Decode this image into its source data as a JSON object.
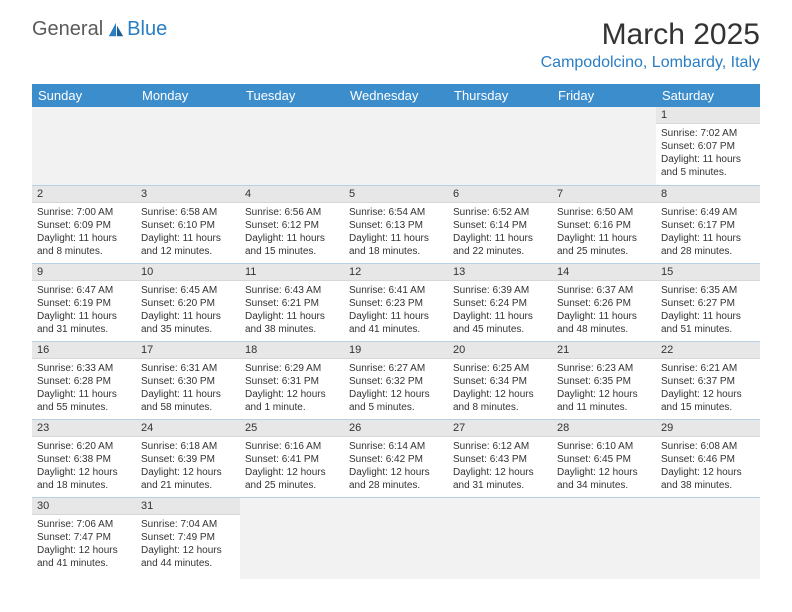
{
  "logo": {
    "text1": "General",
    "text2": "Blue"
  },
  "title": "March 2025",
  "location": "Campodolcino, Lombardy, Italy",
  "columns": [
    "Sunday",
    "Monday",
    "Tuesday",
    "Wednesday",
    "Thursday",
    "Friday",
    "Saturday"
  ],
  "colors": {
    "header_bg": "#3c8dcc",
    "link_blue": "#2a7ec4",
    "daynum_bg": "#e7e7e7",
    "empty_bg": "#f2f2f2",
    "border": "#b8cfe4"
  },
  "weeks": [
    [
      null,
      null,
      null,
      null,
      null,
      null,
      {
        "n": "1",
        "sr": "Sunrise: 7:02 AM",
        "ss": "Sunset: 6:07 PM",
        "dl": "Daylight: 11 hours and 5 minutes."
      }
    ],
    [
      {
        "n": "2",
        "sr": "Sunrise: 7:00 AM",
        "ss": "Sunset: 6:09 PM",
        "dl": "Daylight: 11 hours and 8 minutes."
      },
      {
        "n": "3",
        "sr": "Sunrise: 6:58 AM",
        "ss": "Sunset: 6:10 PM",
        "dl": "Daylight: 11 hours and 12 minutes."
      },
      {
        "n": "4",
        "sr": "Sunrise: 6:56 AM",
        "ss": "Sunset: 6:12 PM",
        "dl": "Daylight: 11 hours and 15 minutes."
      },
      {
        "n": "5",
        "sr": "Sunrise: 6:54 AM",
        "ss": "Sunset: 6:13 PM",
        "dl": "Daylight: 11 hours and 18 minutes."
      },
      {
        "n": "6",
        "sr": "Sunrise: 6:52 AM",
        "ss": "Sunset: 6:14 PM",
        "dl": "Daylight: 11 hours and 22 minutes."
      },
      {
        "n": "7",
        "sr": "Sunrise: 6:50 AM",
        "ss": "Sunset: 6:16 PM",
        "dl": "Daylight: 11 hours and 25 minutes."
      },
      {
        "n": "8",
        "sr": "Sunrise: 6:49 AM",
        "ss": "Sunset: 6:17 PM",
        "dl": "Daylight: 11 hours and 28 minutes."
      }
    ],
    [
      {
        "n": "9",
        "sr": "Sunrise: 6:47 AM",
        "ss": "Sunset: 6:19 PM",
        "dl": "Daylight: 11 hours and 31 minutes."
      },
      {
        "n": "10",
        "sr": "Sunrise: 6:45 AM",
        "ss": "Sunset: 6:20 PM",
        "dl": "Daylight: 11 hours and 35 minutes."
      },
      {
        "n": "11",
        "sr": "Sunrise: 6:43 AM",
        "ss": "Sunset: 6:21 PM",
        "dl": "Daylight: 11 hours and 38 minutes."
      },
      {
        "n": "12",
        "sr": "Sunrise: 6:41 AM",
        "ss": "Sunset: 6:23 PM",
        "dl": "Daylight: 11 hours and 41 minutes."
      },
      {
        "n": "13",
        "sr": "Sunrise: 6:39 AM",
        "ss": "Sunset: 6:24 PM",
        "dl": "Daylight: 11 hours and 45 minutes."
      },
      {
        "n": "14",
        "sr": "Sunrise: 6:37 AM",
        "ss": "Sunset: 6:26 PM",
        "dl": "Daylight: 11 hours and 48 minutes."
      },
      {
        "n": "15",
        "sr": "Sunrise: 6:35 AM",
        "ss": "Sunset: 6:27 PM",
        "dl": "Daylight: 11 hours and 51 minutes."
      }
    ],
    [
      {
        "n": "16",
        "sr": "Sunrise: 6:33 AM",
        "ss": "Sunset: 6:28 PM",
        "dl": "Daylight: 11 hours and 55 minutes."
      },
      {
        "n": "17",
        "sr": "Sunrise: 6:31 AM",
        "ss": "Sunset: 6:30 PM",
        "dl": "Daylight: 11 hours and 58 minutes."
      },
      {
        "n": "18",
        "sr": "Sunrise: 6:29 AM",
        "ss": "Sunset: 6:31 PM",
        "dl": "Daylight: 12 hours and 1 minute."
      },
      {
        "n": "19",
        "sr": "Sunrise: 6:27 AM",
        "ss": "Sunset: 6:32 PM",
        "dl": "Daylight: 12 hours and 5 minutes."
      },
      {
        "n": "20",
        "sr": "Sunrise: 6:25 AM",
        "ss": "Sunset: 6:34 PM",
        "dl": "Daylight: 12 hours and 8 minutes."
      },
      {
        "n": "21",
        "sr": "Sunrise: 6:23 AM",
        "ss": "Sunset: 6:35 PM",
        "dl": "Daylight: 12 hours and 11 minutes."
      },
      {
        "n": "22",
        "sr": "Sunrise: 6:21 AM",
        "ss": "Sunset: 6:37 PM",
        "dl": "Daylight: 12 hours and 15 minutes."
      }
    ],
    [
      {
        "n": "23",
        "sr": "Sunrise: 6:20 AM",
        "ss": "Sunset: 6:38 PM",
        "dl": "Daylight: 12 hours and 18 minutes."
      },
      {
        "n": "24",
        "sr": "Sunrise: 6:18 AM",
        "ss": "Sunset: 6:39 PM",
        "dl": "Daylight: 12 hours and 21 minutes."
      },
      {
        "n": "25",
        "sr": "Sunrise: 6:16 AM",
        "ss": "Sunset: 6:41 PM",
        "dl": "Daylight: 12 hours and 25 minutes."
      },
      {
        "n": "26",
        "sr": "Sunrise: 6:14 AM",
        "ss": "Sunset: 6:42 PM",
        "dl": "Daylight: 12 hours and 28 minutes."
      },
      {
        "n": "27",
        "sr": "Sunrise: 6:12 AM",
        "ss": "Sunset: 6:43 PM",
        "dl": "Daylight: 12 hours and 31 minutes."
      },
      {
        "n": "28",
        "sr": "Sunrise: 6:10 AM",
        "ss": "Sunset: 6:45 PM",
        "dl": "Daylight: 12 hours and 34 minutes."
      },
      {
        "n": "29",
        "sr": "Sunrise: 6:08 AM",
        "ss": "Sunset: 6:46 PM",
        "dl": "Daylight: 12 hours and 38 minutes."
      }
    ],
    [
      {
        "n": "30",
        "sr": "Sunrise: 7:06 AM",
        "ss": "Sunset: 7:47 PM",
        "dl": "Daylight: 12 hours and 41 minutes."
      },
      {
        "n": "31",
        "sr": "Sunrise: 7:04 AM",
        "ss": "Sunset: 7:49 PM",
        "dl": "Daylight: 12 hours and 44 minutes."
      },
      null,
      null,
      null,
      null,
      null
    ]
  ]
}
